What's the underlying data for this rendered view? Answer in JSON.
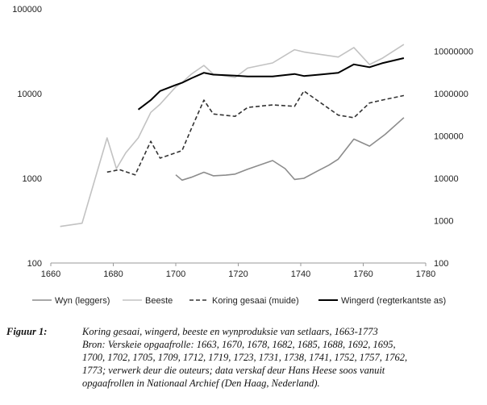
{
  "chart_data": {
    "type": "line",
    "x": [
      1660,
      1680,
      1700,
      1720,
      1740,
      1760,
      1780
    ],
    "xlim": [
      1660,
      1780
    ],
    "ylim_left": [
      100,
      100000
    ],
    "ylim_right": [
      100,
      100000000
    ],
    "scale": "log",
    "yticks_left": [
      "100",
      "1000",
      "10000",
      "100000"
    ],
    "yticks_right": [
      "100",
      "1000",
      "10000",
      "100000",
      "1000000",
      "10000000"
    ],
    "xticks": [
      "1660",
      "1680",
      "1700",
      "1720",
      "1740",
      "1760",
      "1780"
    ],
    "grid": false,
    "legend_position": "bottom",
    "series": [
      {
        "name": "Wyn (leggers)",
        "color": "#8c8c8c",
        "dash": "solid",
        "axis": "left",
        "points": [
          [
            1700,
            1100
          ],
          [
            1702,
            950
          ],
          [
            1705,
            1030
          ],
          [
            1709,
            1180
          ],
          [
            1712,
            1070
          ],
          [
            1716,
            1090
          ],
          [
            1719,
            1120
          ],
          [
            1723,
            1280
          ],
          [
            1727,
            1440
          ],
          [
            1731,
            1620
          ],
          [
            1735,
            1300
          ],
          [
            1738,
            970
          ],
          [
            1741,
            1000
          ],
          [
            1745,
            1200
          ],
          [
            1749,
            1430
          ],
          [
            1752,
            1680
          ],
          [
            1757,
            2900
          ],
          [
            1762,
            2400
          ],
          [
            1767,
            3300
          ],
          [
            1773,
            5200
          ]
        ]
      },
      {
        "name": "Beeste",
        "color": "#c2c2c2",
        "dash": "solid",
        "axis": "left",
        "points": [
          [
            1663,
            270
          ],
          [
            1670,
            295
          ],
          [
            1678,
            3000
          ],
          [
            1681,
            1300
          ],
          [
            1684,
            2000
          ],
          [
            1688,
            3000
          ],
          [
            1692,
            6000
          ],
          [
            1695,
            7500
          ],
          [
            1700,
            12000
          ],
          [
            1702,
            13500
          ],
          [
            1705,
            17000
          ],
          [
            1709,
            21500
          ],
          [
            1712,
            17000
          ],
          [
            1719,
            15500
          ],
          [
            1723,
            20000
          ],
          [
            1731,
            23000
          ],
          [
            1738,
            33000
          ],
          [
            1741,
            31000
          ],
          [
            1752,
            27000
          ],
          [
            1757,
            35000
          ],
          [
            1762,
            22000
          ],
          [
            1766,
            26000
          ],
          [
            1773,
            38000
          ]
        ]
      },
      {
        "name": "Koring gesaai (muide)",
        "color": "#333333",
        "dash": "dashed",
        "axis": "right",
        "points": [
          [
            1678,
            14000
          ],
          [
            1682,
            16000
          ],
          [
            1687,
            12000
          ],
          [
            1692,
            75000
          ],
          [
            1695,
            30000
          ],
          [
            1700,
            40000
          ],
          [
            1702,
            45000
          ],
          [
            1705,
            150000
          ],
          [
            1709,
            700000
          ],
          [
            1712,
            330000
          ],
          [
            1719,
            290000
          ],
          [
            1723,
            470000
          ],
          [
            1731,
            540000
          ],
          [
            1738,
            500000
          ],
          [
            1741,
            1150000
          ],
          [
            1752,
            310000
          ],
          [
            1757,
            270000
          ],
          [
            1762,
            600000
          ],
          [
            1766,
            700000
          ],
          [
            1773,
            900000
          ]
        ]
      },
      {
        "name": "Wingerd (regterkantste as)",
        "color": "#000000",
        "dash": "solid",
        "axis": "right",
        "points": [
          [
            1688,
            420000
          ],
          [
            1692,
            700000
          ],
          [
            1695,
            1150000
          ],
          [
            1700,
            1600000
          ],
          [
            1702,
            1800000
          ],
          [
            1705,
            2300000
          ],
          [
            1709,
            3100000
          ],
          [
            1712,
            2800000
          ],
          [
            1719,
            2650000
          ],
          [
            1723,
            2550000
          ],
          [
            1731,
            2550000
          ],
          [
            1738,
            2900000
          ],
          [
            1741,
            2600000
          ],
          [
            1746,
            2800000
          ],
          [
            1752,
            3100000
          ],
          [
            1757,
            4900000
          ],
          [
            1762,
            4200000
          ],
          [
            1766,
            5200000
          ],
          [
            1773,
            6900000
          ]
        ]
      }
    ]
  },
  "caption": {
    "label": "Figuur 1:",
    "lines": [
      "Koring gesaai, wingerd, beeste en wynproduksie van setlaars, 1663-1773",
      "Bron: Verskeie opgaafrolle: 1663, 1670, 1678, 1682, 1685, 1688, 1692, 1695,",
      "1700, 1702, 1705, 1709, 1712, 1719, 1723, 1731, 1738, 1741, 1752, 1757, 1762,",
      "1773; verwerk deur die outeurs; data verskaf deur Hans Heese soos vanuit",
      "opgaafrollen in Nationaal Archief (Den Haag, Nederland)."
    ]
  }
}
